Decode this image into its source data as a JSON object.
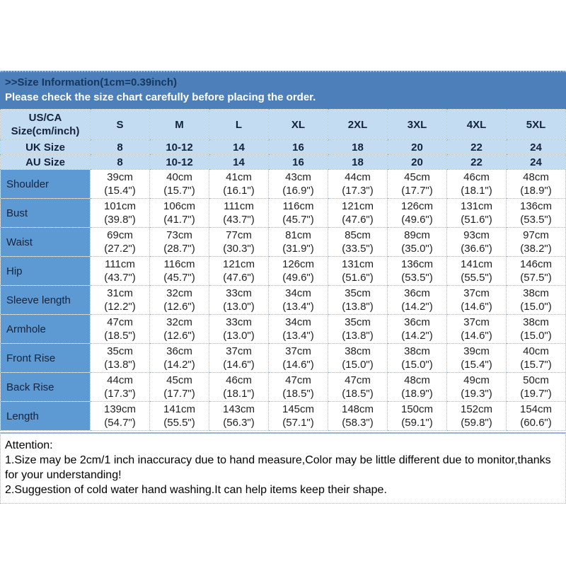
{
  "banner": {
    "title": ">>Size Information(1cm=0.39inch)",
    "subtitle": "Please check the size chart carefully before placing the order."
  },
  "table": {
    "corner_label": "US/CA Size(cm/inch)",
    "size_columns": [
      "S",
      "M",
      "L",
      "XL",
      "2XL",
      "3XL",
      "4XL",
      "5XL"
    ],
    "size_rows": [
      {
        "label": "UK Size",
        "values": [
          "8",
          "10-12",
          "14",
          "16",
          "18",
          "20",
          "22",
          "24"
        ]
      },
      {
        "label": "AU Size",
        "values": [
          "8",
          "10-12",
          "14",
          "16",
          "18",
          "20",
          "22",
          "24"
        ]
      }
    ],
    "measurement_rows": [
      {
        "label": "Shoulder",
        "values": [
          "39cm\n(15.4\")",
          "40cm\n(15.7\")",
          "41cm\n(16.1\")",
          "43cm\n(16.9\")",
          "44cm\n(17.3\")",
          "45cm\n(17.7\")",
          "46cm\n(18.1\")",
          "48cm\n(18.9\")"
        ]
      },
      {
        "label": "Bust",
        "values": [
          "101cm\n(39.8\")",
          "106cm\n(41.7\")",
          "111cm\n(43.7\")",
          "116cm\n(45.7\")",
          "121cm\n(47.6\")",
          "126cm\n(49.6\")",
          "131cm\n(51.6\")",
          "136cm\n(53.5\")"
        ]
      },
      {
        "label": "Waist",
        "values": [
          "69cm\n(27.2\")",
          "73cm\n(28.7\")",
          "77cm\n(30.3\")",
          "81cm\n(31.9\")",
          "85cm\n(33.5\")",
          "89cm\n(35.0\")",
          "93cm\n(36.6\")",
          "97cm\n(38.2\")"
        ]
      },
      {
        "label": "Hip",
        "values": [
          "111cm\n(43.7\")",
          "116cm\n(45.7\")",
          "121cm\n(47.6\")",
          "126cm\n(49.6\")",
          "131cm\n(51.6\")",
          "136cm\n(53.5\")",
          "141cm\n(55.5\")",
          "146cm\n(57.5\")"
        ]
      },
      {
        "label": "Sleeve length",
        "values": [
          "31cm\n(12.2\")",
          "32cm\n(12.6\")",
          "33cm\n(13.0\")",
          "34cm\n(13.4\")",
          "35cm\n(13.8\")",
          "36cm\n(14.2\")",
          "37cm\n(14.6\")",
          "38cm\n(15.0\")"
        ]
      },
      {
        "label": "Armhole",
        "values": [
          "47cm\n(18.5\")",
          "32cm\n(12.6\")",
          "33cm\n(13.0\")",
          "34cm\n(13.4\")",
          "35cm\n(13.8\")",
          "36cm\n(14.2\")",
          "37cm\n(14.6\")",
          "38cm\n(15.0\")"
        ]
      },
      {
        "label": "Front Rise",
        "values": [
          "35cm\n(13.8\")",
          "36cm\n(14.2\")",
          "37cm\n(14.6\")",
          "37cm\n(14.6\")",
          "38cm\n(15.0\")",
          "38cm\n(15.0\")",
          "39cm\n(15.4\")",
          "40cm\n(15.7\")"
        ]
      },
      {
        "label": "Back Rise",
        "values": [
          "44cm\n(17.3\")",
          "45cm\n(17.7\")",
          "46cm\n(18.1\")",
          "47cm\n(18.5\")",
          "47cm\n(18.5\")",
          "48cm\n(18.9\")",
          "49cm\n(19.3\")",
          "50cm\n(19.7\")"
        ]
      },
      {
        "label": "Length",
        "values": [
          "139cm\n(54.7\")",
          "141cm\n(55.5\")",
          "143cm\n(56.3\")",
          "145cm\n(57.1\")",
          "148cm\n(58.3\")",
          "150cm\n(59.1\")",
          "152cm\n(59.8\")",
          "154cm\n(60.6\")"
        ]
      }
    ]
  },
  "attention": {
    "heading": "Attention:",
    "note1": "1.Size may be 2cm/1 inch inaccuracy due to hand measure,Color may be little different due to monitor,thanks for your understanding!",
    "note2": "2.Suggestion of cold water hand washing.It can help items keep their shape."
  },
  "colors": {
    "banner_bg": "#4d80ba",
    "banner_title_text": "#17375e",
    "banner_subtitle_text": "#ffffff",
    "header_cell_bg": "#c3dcf2",
    "row_label_bg": "#5d9ad3",
    "border": "#8fb7dc"
  }
}
